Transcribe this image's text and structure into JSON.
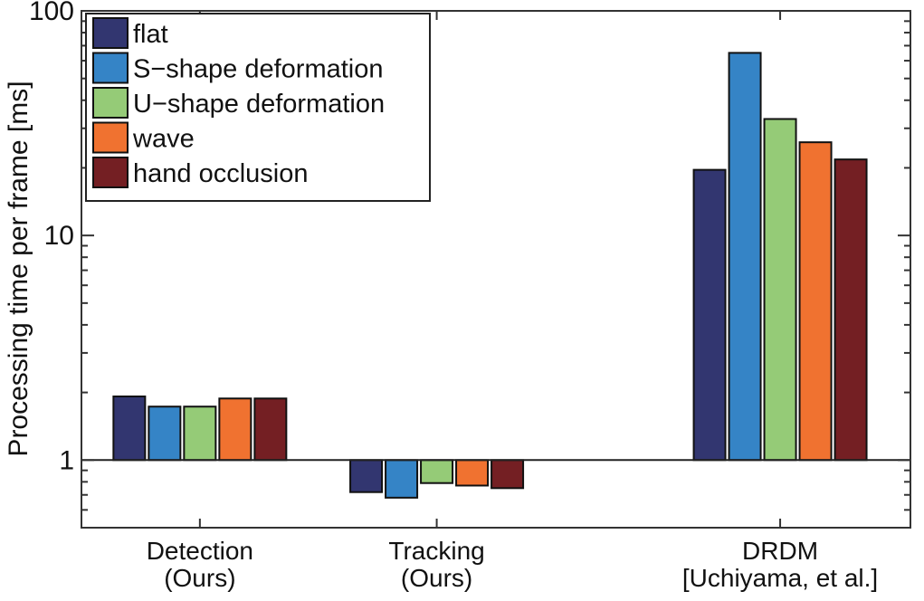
{
  "chart_data": {
    "type": "bar",
    "title": "",
    "xlabel": "",
    "ylabel": "Processing time per frame [ms]",
    "yscale": "log",
    "ylim": [
      0.5,
      100
    ],
    "xlim": [
      0.5,
      4.0
    ],
    "baseline": 1,
    "yticks": [
      1,
      10,
      100
    ],
    "ytick_labels": [
      "1",
      "10",
      "100"
    ],
    "grid": false,
    "legend_position": "top-left",
    "categories": [
      {
        "line1": "Detection",
        "line2": "(Ours)",
        "x": 1
      },
      {
        "line1": "Tracking",
        "line2": "(Ours)",
        "x": 2
      },
      {
        "line1": "DRDM",
        "line2": "[Uchiyama, et al.]",
        "x": 3.45
      }
    ],
    "series": [
      {
        "name": "flat",
        "color": "#323670",
        "values": [
          1.92,
          0.72,
          19.6
        ]
      },
      {
        "name": "S−shape deformation",
        "color": "#3584c6",
        "values": [
          1.73,
          0.68,
          65
        ]
      },
      {
        "name": "U−shape deformation",
        "color": "#95cb77",
        "values": [
          1.73,
          0.79,
          33
        ]
      },
      {
        "name": "wave",
        "color": "#f07230",
        "values": [
          1.88,
          0.77,
          26
        ]
      },
      {
        "name": "hand occlusion",
        "color": "#741f23",
        "values": [
          1.88,
          0.75,
          21.8
        ]
      }
    ]
  }
}
